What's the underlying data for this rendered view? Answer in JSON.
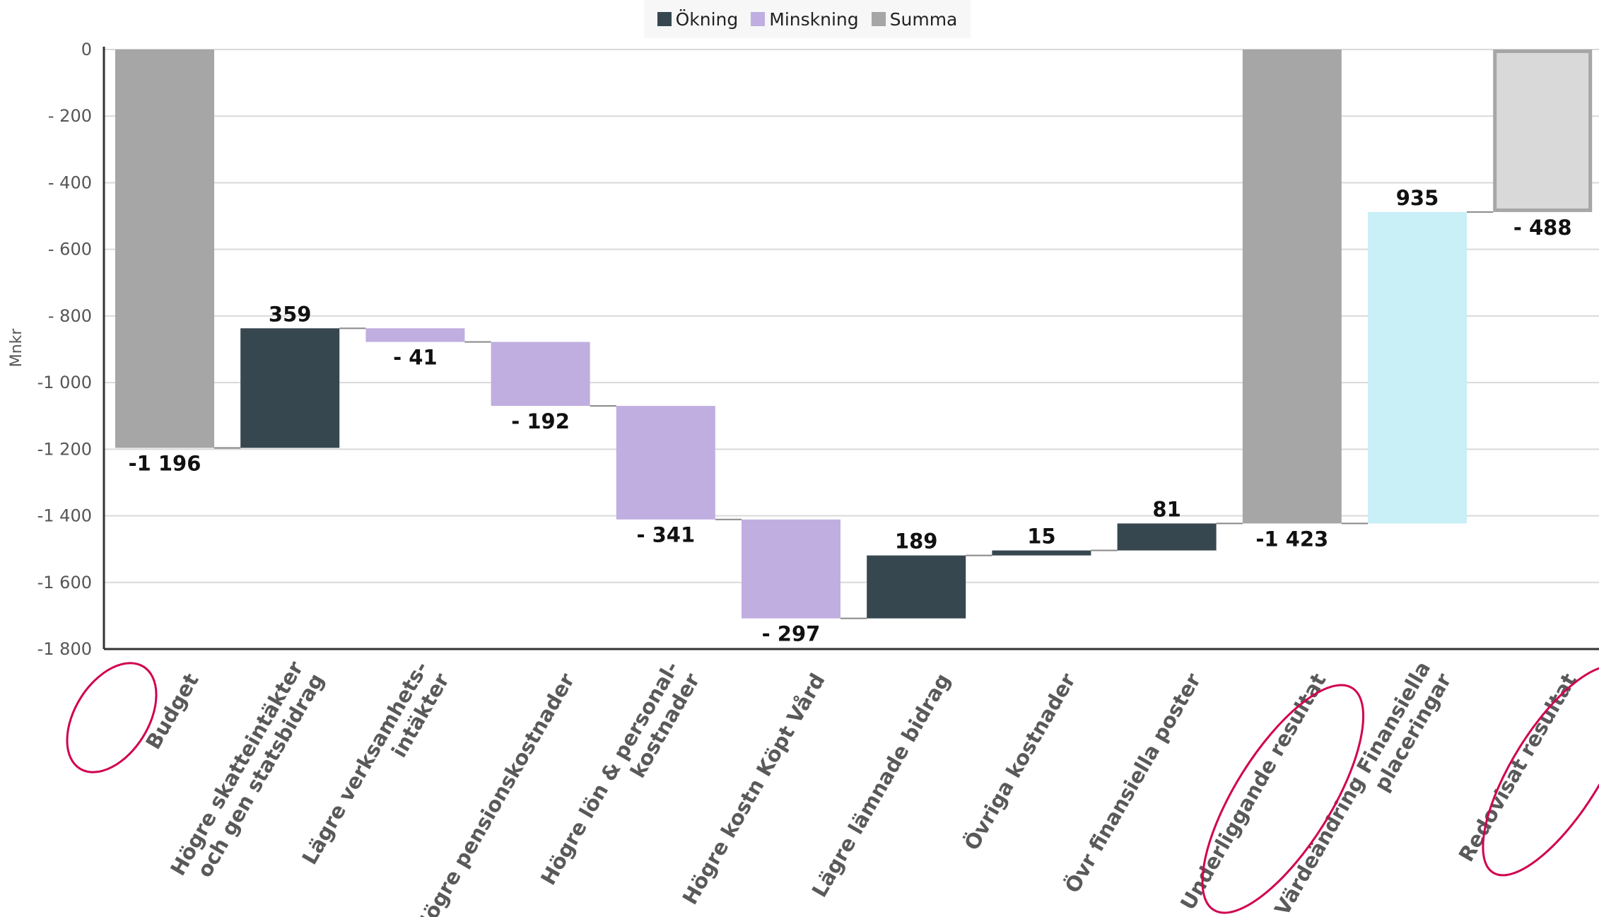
{
  "chart_data": {
    "type": "waterfall",
    "title": "",
    "ylabel": "Mnkr",
    "ylim": [
      -1800,
      0
    ],
    "yticks": [
      0,
      -200,
      -400,
      -600,
      -800,
      -1000,
      -1200,
      -1400,
      -1600,
      -1800
    ],
    "ytick_labels": [
      "0",
      "- 200",
      "- 400",
      "- 600",
      "- 800",
      "-1 000",
      "-1 200",
      "-1 400",
      "-1 600",
      "-1 800"
    ],
    "grid": true,
    "legend": {
      "placement": "top-center",
      "items": [
        {
          "label": "Ökning",
          "color": "#37474f"
        },
        {
          "label": "Minskning",
          "color": "#c0aee0"
        },
        {
          "label": "Summa",
          "color": "#a6a6a6"
        }
      ]
    },
    "categories": [
      [
        "Budget"
      ],
      [
        "Högre skatteintäkter",
        "och gen statsbidrag"
      ],
      [
        "Lägre verksamhets-",
        "intäkter"
      ],
      [
        "Högre pensionskostnader"
      ],
      [
        "Högre lön & personal-",
        "kostnader"
      ],
      [
        "Högre kostn Köpt Vård"
      ],
      [
        "Lägre lämnade bidrag"
      ],
      [
        "Övriga kostnader"
      ],
      [
        "Övr finansiella poster"
      ],
      [
        "Underliggande resultat"
      ],
      [
        "Värdeändring Finansiella",
        "placeringar"
      ],
      [
        "Redovisat resultat"
      ]
    ],
    "bars": [
      {
        "kind": "total",
        "from": 0,
        "to": -1196,
        "label": "-1 196",
        "color": "#a6a6a6"
      },
      {
        "kind": "increase",
        "from": -1196,
        "to": -837,
        "label": "359",
        "color": "#37474f"
      },
      {
        "kind": "decrease",
        "from": -837,
        "to": -878,
        "label": "- 41",
        "color": "#c0aee0"
      },
      {
        "kind": "decrease",
        "from": -878,
        "to": -1070,
        "label": "- 192",
        "color": "#c0aee0"
      },
      {
        "kind": "decrease",
        "from": -1070,
        "to": -1411,
        "label": "- 341",
        "color": "#c0aee0"
      },
      {
        "kind": "decrease",
        "from": -1411,
        "to": -1708,
        "label": "- 297",
        "color": "#c0aee0"
      },
      {
        "kind": "increase",
        "from": -1708,
        "to": -1519,
        "label": "189",
        "color": "#37474f"
      },
      {
        "kind": "increase",
        "from": -1519,
        "to": -1504,
        "label": "15",
        "color": "#37474f"
      },
      {
        "kind": "increase",
        "from": -1504,
        "to": -1423,
        "label": "81",
        "color": "#37474f"
      },
      {
        "kind": "total",
        "from": 0,
        "to": -1423,
        "label": "-1 423",
        "color": "#a6a6a6"
      },
      {
        "kind": "increase",
        "from": -1423,
        "to": -488,
        "label": "935",
        "color": "#c9eff7"
      },
      {
        "kind": "total",
        "from": 0,
        "to": -488,
        "label": "- 488",
        "color": "#d9d9d9",
        "stroke": "#a6a6a6"
      }
    ],
    "highlighted_categories": [
      0,
      9,
      11
    ],
    "highlight_color": "#d1004f"
  }
}
